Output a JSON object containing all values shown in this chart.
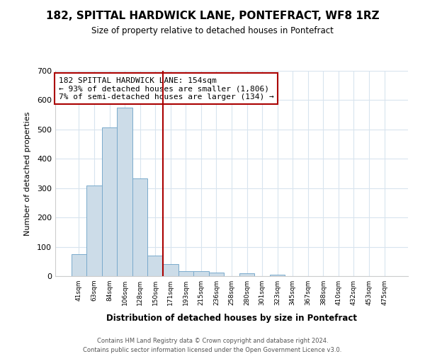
{
  "title": "182, SPITTAL HARDWICK LANE, PONTEFRACT, WF8 1RZ",
  "subtitle": "Size of property relative to detached houses in Pontefract",
  "xlabel": "Distribution of detached houses by size in Pontefract",
  "ylabel": "Number of detached properties",
  "bin_labels": [
    "41sqm",
    "63sqm",
    "84sqm",
    "106sqm",
    "128sqm",
    "150sqm",
    "171sqm",
    "193sqm",
    "215sqm",
    "236sqm",
    "258sqm",
    "280sqm",
    "301sqm",
    "323sqm",
    "345sqm",
    "367sqm",
    "388sqm",
    "410sqm",
    "432sqm",
    "453sqm",
    "475sqm"
  ],
  "bin_values": [
    75,
    310,
    507,
    575,
    332,
    70,
    40,
    18,
    18,
    12,
    0,
    10,
    0,
    5,
    0,
    0,
    0,
    0,
    0,
    0,
    0
  ],
  "bar_color": "#ccdce8",
  "bar_edge_color": "#7aaacc",
  "vline_color": "#aa0000",
  "annotation_text": "182 SPITTAL HARDWICK LANE: 154sqm\n← 93% of detached houses are smaller (1,806)\n7% of semi-detached houses are larger (134) →",
  "annotation_box_color": "#ffffff",
  "annotation_box_edge_color": "#aa0000",
  "ylim": [
    0,
    700
  ],
  "yticks": [
    0,
    100,
    200,
    300,
    400,
    500,
    600,
    700
  ],
  "footer1": "Contains HM Land Registry data © Crown copyright and database right 2024.",
  "footer2": "Contains public sector information licensed under the Open Government Licence v3.0.",
  "background_color": "#ffffff",
  "grid_color": "#d8e4ee",
  "vline_bin_index": 5
}
